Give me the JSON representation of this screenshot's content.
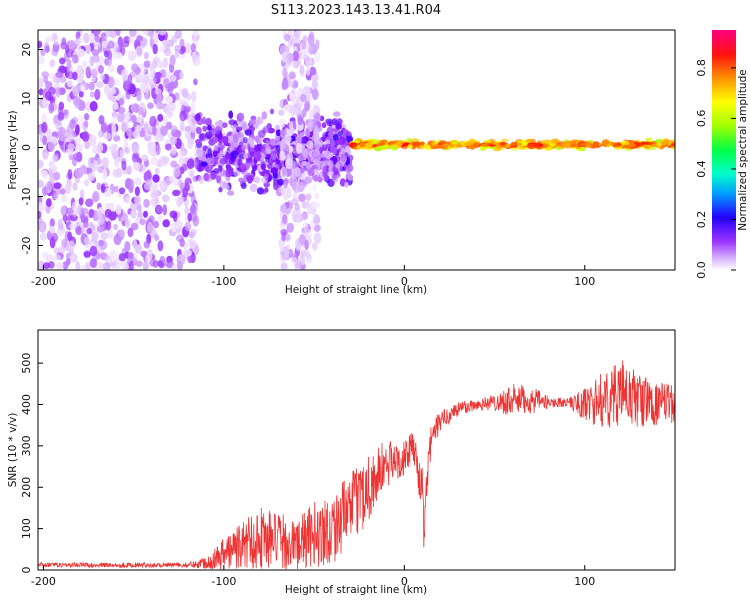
{
  "title": "S113.2023.143.13.41.R04",
  "chart_data": [
    {
      "type": "heatmap",
      "xlabel": "Height of straight line (km)",
      "ylabel": "Frequency (Hz)",
      "xlim": [
        -203,
        150
      ],
      "ylim": [
        -25,
        24
      ],
      "x_ticks": [
        -200,
        -100,
        0,
        100
      ],
      "y_ticks": [
        -20,
        -10,
        0,
        10,
        20
      ],
      "colorbar": {
        "label": "Normalized spectral amplitude",
        "range": [
          0.0,
          0.95
        ],
        "ticks": [
          0.0,
          0.2,
          0.4,
          0.6,
          0.8
        ],
        "colormap": [
          "#ffffff",
          "#d9b3ff",
          "#9a33ff",
          "#6a00ff",
          "#0000ff",
          "#00c8ff",
          "#00ff7f",
          "#7fff00",
          "#ffff00",
          "#ff8000",
          "#ff0000",
          "#ff0080"
        ]
      },
      "regions": [
        {
          "x_range": [
            -203,
            -115
          ],
          "freq_range": [
            -25,
            24
          ],
          "pattern": "scattered noise",
          "amplitude_range": [
            0.03,
            0.2
          ]
        },
        {
          "x_range": [
            -115,
            -30
          ],
          "freq_range": [
            -10,
            8
          ],
          "pattern": "broadband cluster",
          "amplitude_range": [
            0.08,
            0.3
          ]
        },
        {
          "x_range": [
            -68,
            -48
          ],
          "freq_range": [
            -25,
            24
          ],
          "pattern": "vertical noise streak",
          "amplitude_range": [
            0.03,
            0.15
          ]
        },
        {
          "x_range": [
            -30,
            150
          ],
          "freq_range": [
            -1,
            2
          ],
          "pattern": "narrow band near 0 Hz",
          "amplitude_range": [
            0.4,
            0.9
          ]
        }
      ]
    },
    {
      "type": "line",
      "xlabel": "Height of straight line (km)",
      "ylabel": "SNR (10 * v/v)",
      "xlim": [
        -203,
        150
      ],
      "ylim": [
        0,
        580
      ],
      "x_ticks": [
        -200,
        -100,
        0,
        100
      ],
      "y_ticks": [
        0,
        100,
        200,
        300,
        400,
        500
      ],
      "series": [
        {
          "color": "#ee3333",
          "x": [
            -203,
            -180,
            -160,
            -140,
            -120,
            -110,
            -100,
            -90,
            -80,
            -70,
            -60,
            -50,
            -40,
            -30,
            -20,
            -10,
            0,
            5,
            10,
            11,
            12,
            15,
            20,
            30,
            40,
            50,
            60,
            70,
            80,
            90,
            100,
            110,
            120,
            130,
            140,
            150
          ],
          "y": [
            12,
            12,
            12,
            12,
            12,
            18,
            40,
            60,
            80,
            70,
            60,
            85,
            100,
            150,
            200,
            255,
            270,
            300,
            190,
            60,
            200,
            320,
            360,
            390,
            400,
            405,
            410,
            410,
            405,
            405,
            400,
            410,
            430,
            410,
            400,
            405
          ],
          "spread": [
            6,
            6,
            6,
            6,
            6,
            15,
            40,
            60,
            80,
            70,
            60,
            80,
            90,
            80,
            90,
            60,
            40,
            40,
            60,
            30,
            60,
            40,
            25,
            20,
            15,
            20,
            40,
            35,
            15,
            10,
            40,
            70,
            80,
            70,
            50,
            50
          ]
        }
      ]
    }
  ]
}
